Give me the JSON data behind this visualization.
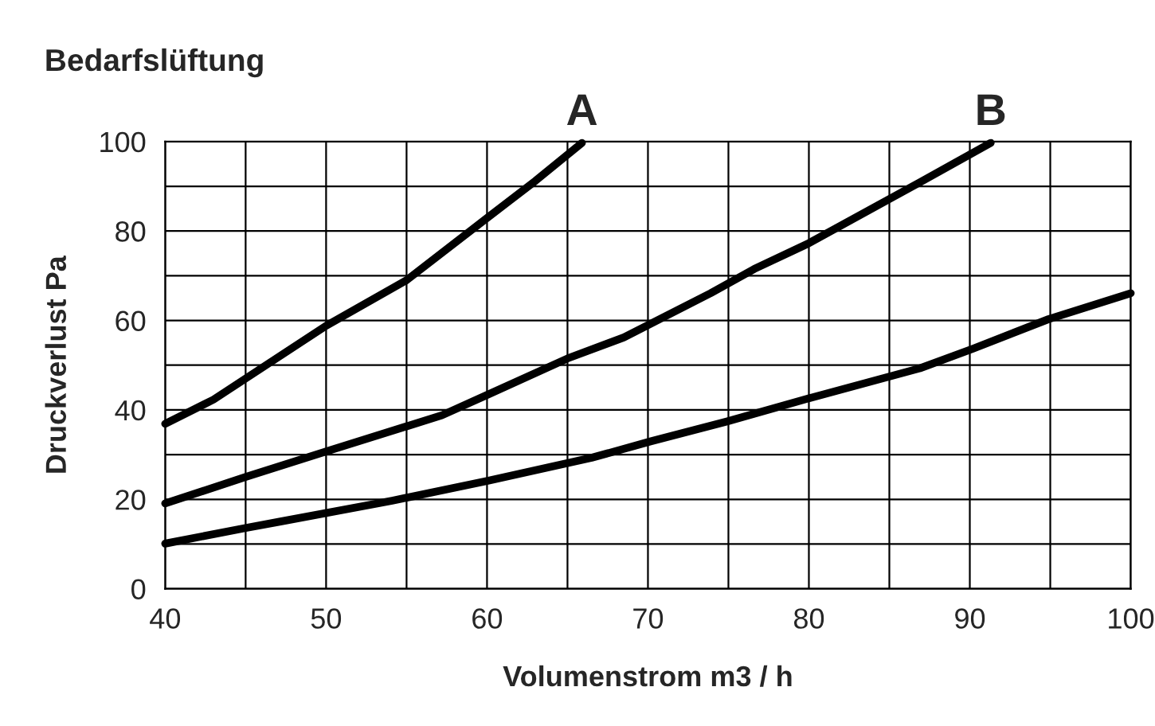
{
  "chart_data": {
    "type": "line",
    "title": "Bedarfslüftung",
    "xlabel": "Volumenstrom m3 / h",
    "ylabel": "Druckverlust Pa",
    "series": [
      {
        "color": "#000000",
        "x": [
          40,
          43,
          50,
          55,
          60,
          63,
          65.9
        ],
        "values": [
          36.9,
          42.3,
          58.8,
          69,
          82.9,
          91.2,
          99.7
        ]
      },
      {
        "color": "#000000",
        "x": [
          40,
          45,
          50,
          57.2,
          60.1,
          65,
          68.5,
          73.9,
          76.6,
          79.9,
          86.9,
          91.3
        ],
        "values": [
          19.1,
          25,
          30.7,
          38.8,
          43.5,
          51.5,
          56.2,
          66.1,
          71.5,
          77.1,
          90.9,
          99.7
        ]
      },
      {
        "color": "#000000",
        "x": [
          40,
          45,
          47.1,
          54.1,
          60.1,
          66.5,
          70.2,
          74.9,
          79.9,
          86.9,
          90.2,
          94.9,
          100
        ],
        "values": [
          10.1,
          13.6,
          15,
          19.7,
          24.2,
          29.3,
          33,
          37.4,
          42.5,
          49.3,
          53.7,
          60.3,
          66.1
        ]
      }
    ],
    "annotations": [
      {
        "text": "A",
        "x": 65.9,
        "y": 99.7
      },
      {
        "text": "B",
        "x": 91.3,
        "y": 99.7
      }
    ],
    "xlim": [
      40,
      100
    ],
    "ylim": [
      0,
      100
    ],
    "xticks": [
      40,
      {
        "value": 45,
        "label": null
      },
      50,
      {
        "value": 55,
        "label": null
      },
      60,
      {
        "value": 65,
        "label": null
      },
      70,
      {
        "value": 75,
        "label": null
      },
      80,
      {
        "value": 85,
        "label": null
      },
      90,
      {
        "value": 95,
        "label": null
      },
      100
    ],
    "yticks": [
      0,
      {
        "value": 10,
        "label": null
      },
      20,
      {
        "value": 30,
        "label": null
      },
      40,
      {
        "value": 50,
        "label": null
      },
      60,
      {
        "value": 70,
        "label": null
      },
      80,
      {
        "value": 90,
        "label": null
      },
      100
    ],
    "grid": true,
    "line_style": "solid",
    "marker": "none",
    "legend": false
  }
}
